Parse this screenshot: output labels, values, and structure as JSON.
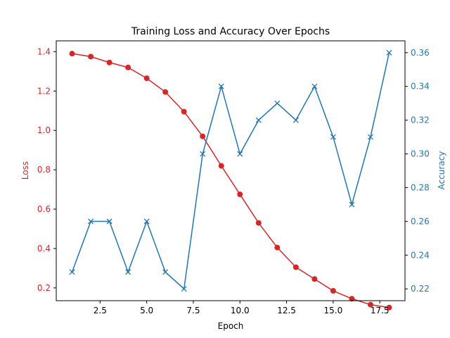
{
  "chart_data": {
    "type": "line",
    "title": "Training Loss and Accuracy Over Epochs",
    "xlabel": "Epoch",
    "xlim": [
      0.15,
      18.85
    ],
    "xticks": [
      2.5,
      5.0,
      7.5,
      10.0,
      12.5,
      15.0,
      17.5
    ],
    "x": [
      1,
      2,
      3,
      4,
      5,
      6,
      7,
      8,
      9,
      10,
      11,
      12,
      13,
      14,
      15,
      16,
      17,
      18
    ],
    "left_axis": {
      "label": "Loss",
      "color": "#d62728",
      "ylim": [
        0.135,
        1.455
      ],
      "ticks": [
        0.2,
        0.4,
        0.6,
        0.8,
        1.0,
        1.2,
        1.4
      ]
    },
    "right_axis": {
      "label": "Accuracy",
      "color": "#1f77b4",
      "ylim": [
        0.213,
        0.367
      ],
      "ticks": [
        0.22,
        0.24,
        0.26,
        0.28,
        0.3,
        0.32,
        0.34,
        0.36
      ]
    },
    "series": [
      {
        "axis": "left",
        "color": "#d62728",
        "marker": "circle",
        "values": [
          1.39,
          1.375,
          1.345,
          1.32,
          1.265,
          1.195,
          1.095,
          0.97,
          0.82,
          0.675,
          0.53,
          0.405,
          0.305,
          0.245,
          0.185,
          0.145,
          0.115,
          0.1
        ]
      },
      {
        "axis": "right",
        "color": "#1f77b4",
        "marker": "x",
        "values": [
          0.23,
          0.26,
          0.26,
          0.23,
          0.26,
          0.23,
          0.22,
          0.3,
          0.34,
          0.3,
          0.32,
          0.33,
          0.32,
          0.34,
          0.31,
          0.27,
          0.31,
          0.36
        ]
      }
    ]
  }
}
